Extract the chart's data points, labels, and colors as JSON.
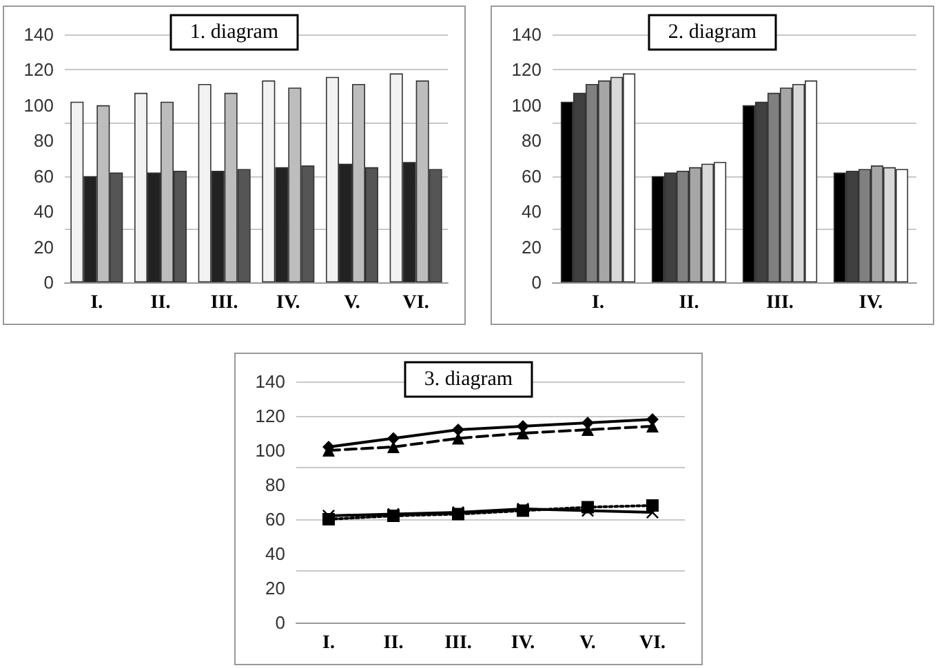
{
  "chart_data": [
    {
      "type": "bar",
      "title": "1. diagram",
      "categories": [
        "I.",
        "II.",
        "III.",
        "IV.",
        "V.",
        "VI."
      ],
      "ylim": [
        0,
        140
      ],
      "yticks": [
        0,
        20,
        40,
        60,
        80,
        100,
        120,
        140
      ],
      "grid": "y",
      "series": [
        {
          "color": "#f2f2f2",
          "values": [
            102,
            107,
            112,
            114,
            116,
            118
          ]
        },
        {
          "color": "#222222",
          "values": [
            60,
            62,
            63,
            65,
            67,
            68
          ]
        },
        {
          "color": "#bdbdbd",
          "values": [
            100,
            102,
            107,
            110,
            112,
            114
          ]
        },
        {
          "color": "#555555",
          "values": [
            62,
            63,
            64,
            66,
            65,
            64
          ]
        }
      ]
    },
    {
      "type": "bar",
      "title": "2. diagram",
      "categories": [
        "I.",
        "II.",
        "III.",
        "IV."
      ],
      "ylim": [
        0,
        140
      ],
      "yticks": [
        0,
        20,
        40,
        60,
        80,
        100,
        120,
        140
      ],
      "grid": "y",
      "series": [
        {
          "color": "#000000",
          "values": [
            102,
            60,
            100,
            62
          ]
        },
        {
          "color": "#404040",
          "values": [
            107,
            62,
            102,
            63
          ]
        },
        {
          "color": "#808080",
          "values": [
            112,
            63,
            107,
            64
          ]
        },
        {
          "color": "#a6a6a6",
          "values": [
            114,
            65,
            110,
            66
          ]
        },
        {
          "color": "#d9d9d9",
          "values": [
            116,
            67,
            112,
            65
          ]
        },
        {
          "color": "#ffffff",
          "values": [
            118,
            68,
            114,
            64
          ]
        }
      ]
    },
    {
      "type": "line",
      "title": "3. diagram",
      "categories": [
        "I.",
        "II.",
        "III.",
        "IV.",
        "V.",
        "VI."
      ],
      "ylim": [
        0,
        140
      ],
      "yticks": [
        0,
        20,
        40,
        60,
        80,
        100,
        120,
        140
      ],
      "grid": "y",
      "series": [
        {
          "color": "#000000",
          "marker": "diamond",
          "line_style": "solid",
          "values": [
            102,
            107,
            112,
            114,
            116,
            118
          ]
        },
        {
          "color": "#000000",
          "marker": "square",
          "line_style": "dotted",
          "values": [
            60,
            62,
            63,
            65,
            67,
            68
          ]
        },
        {
          "color": "#000000",
          "marker": "triangle",
          "line_style": "dashed",
          "values": [
            100,
            102,
            107,
            110,
            112,
            114
          ]
        },
        {
          "color": "#000000",
          "marker": "cross",
          "line_style": "solid",
          "values": [
            62,
            63,
            64,
            66,
            65,
            64
          ]
        }
      ]
    }
  ]
}
